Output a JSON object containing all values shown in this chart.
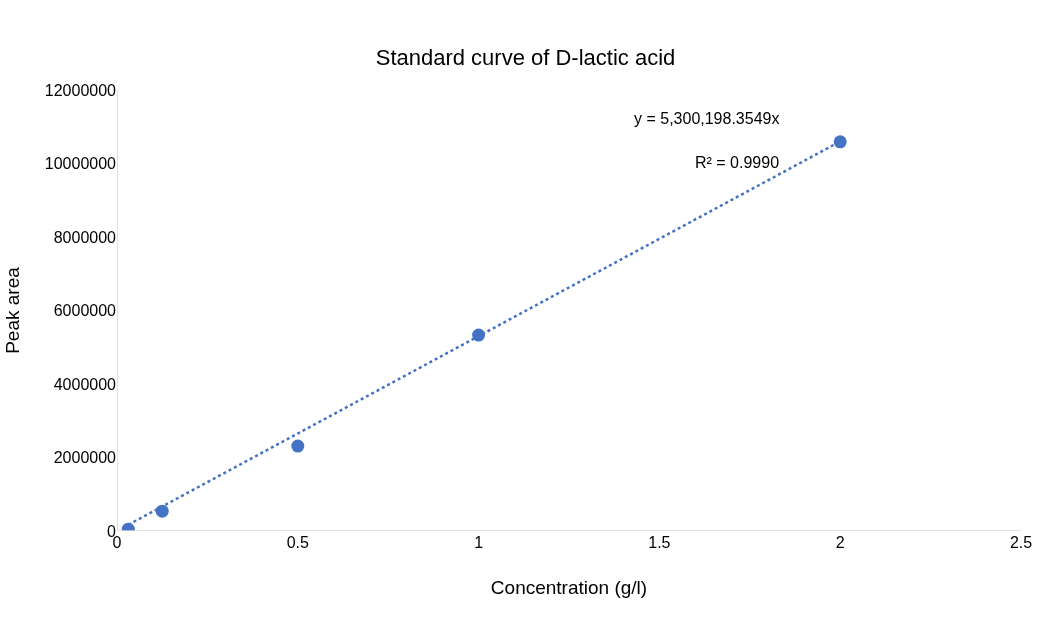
{
  "chart_data": {
    "type": "scatter",
    "title": "Standard curve of D-lactic acid",
    "xlabel": "Concentration (g/l)",
    "ylabel": "Peak area",
    "xlim": [
      0,
      2.5
    ],
    "xticks": [
      0,
      0.5,
      1,
      1.5,
      2,
      2.5
    ],
    "ylim": [
      0,
      12000000
    ],
    "yticks": [
      0,
      2000000,
      4000000,
      6000000,
      8000000,
      10000000,
      12000000
    ],
    "marker": "circle",
    "series": [
      {
        "color": "#4472c4",
        "x": [
          0.03125,
          0.125,
          0.5,
          1,
          2
        ],
        "values": [
          50000,
          540000,
          2310000,
          5330000,
          10590000
        ]
      },
      {
        "type": "line",
        "color": "#4472c4",
        "line_style": "dotted",
        "marker": "none",
        "x": [
          0.03125,
          2
        ],
        "values": [
          170000,
          10600000
        ]
      }
    ],
    "annotations": [
      "y = 5,300,198.3549x",
      "R² = 0.9990"
    ]
  }
}
